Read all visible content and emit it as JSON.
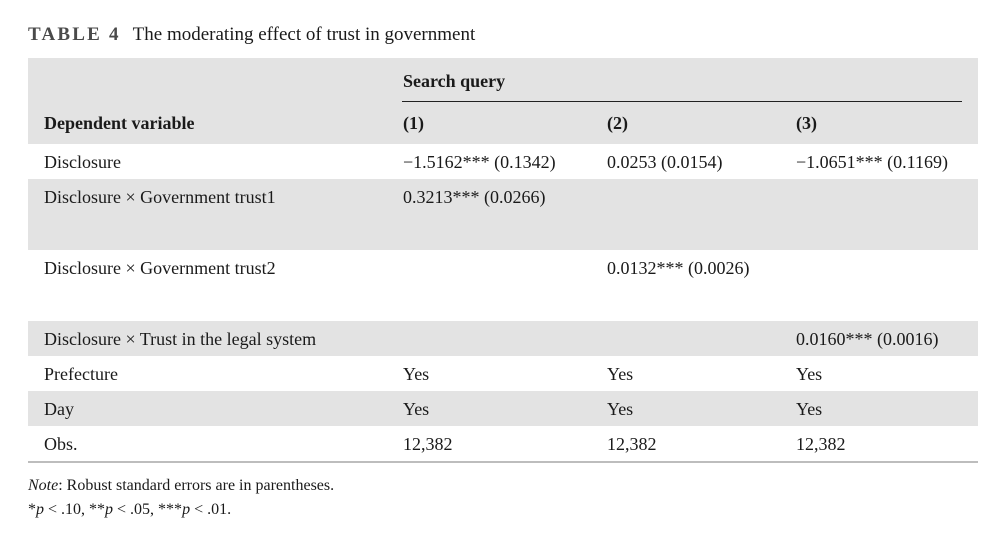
{
  "caption": {
    "label": "TABLE 4",
    "title": "The moderating effect of trust in government"
  },
  "header": {
    "group_label": "Search query",
    "row_header": "Dependent variable",
    "columns": [
      "(1)",
      "(2)",
      "(3)"
    ]
  },
  "rows": [
    {
      "label": "Disclosure",
      "values": [
        "−1.5162*** (0.1342)",
        "0.0253 (0.0154)",
        "−1.0651*** (0.1169)"
      ]
    },
    {
      "label": "Disclosure × Government trust1",
      "values": [
        "0.3213*** (0.0266)",
        "",
        ""
      ]
    },
    {
      "label": "Disclosure × Government trust2",
      "values": [
        "",
        "0.0132*** (0.0026)",
        ""
      ]
    },
    {
      "label": "Disclosure × Trust in the legal system",
      "values": [
        "",
        "",
        "0.0160*** (0.0016)"
      ]
    },
    {
      "label": "Prefecture",
      "values": [
        "Yes",
        "Yes",
        "Yes"
      ]
    },
    {
      "label": "Day",
      "values": [
        "Yes",
        "Yes",
        "Yes"
      ]
    },
    {
      "label": "Obs.",
      "values": [
        "12,382",
        "12,382",
        "12,382"
      ]
    }
  ],
  "notes": {
    "note_label": "Note",
    "note_text": ": Robust standard errors are in parentheses.",
    "sig": {
      "s1": "*",
      "p": "p",
      "t1": " < .10, **",
      "t2": " < .05, ***",
      "t3": " < .01."
    }
  }
}
